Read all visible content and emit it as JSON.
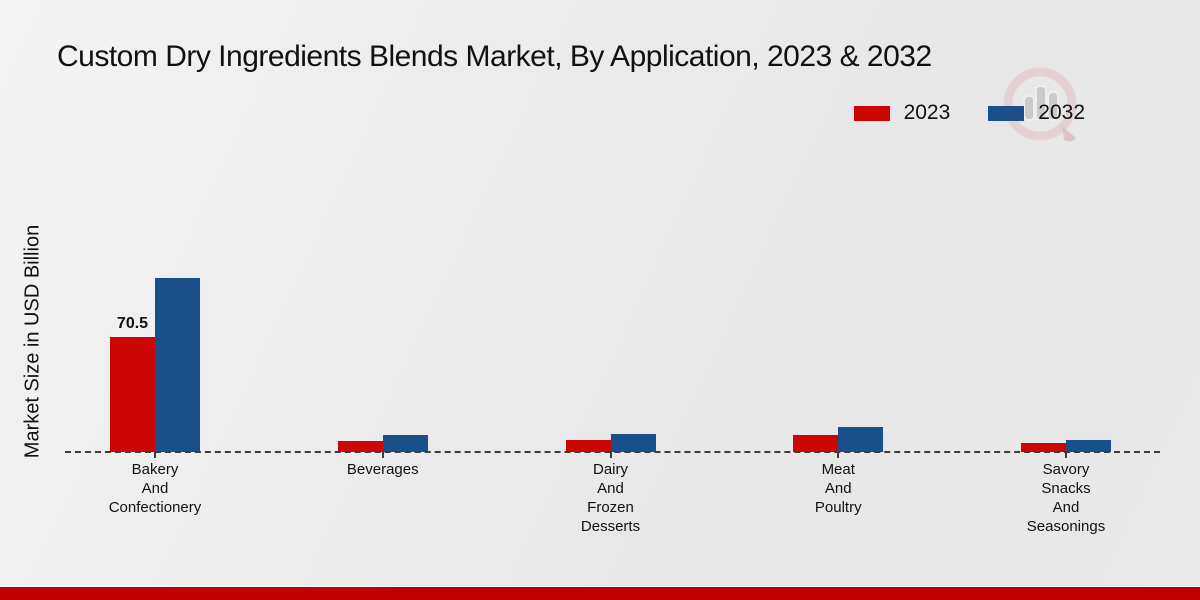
{
  "title": "Custom Dry Ingredients Blends Market, By Application, 2023 & 2032",
  "legend": {
    "items": [
      {
        "label": "2023",
        "color": "#cc0505"
      },
      {
        "label": "2032",
        "color": "#1b4f8a"
      }
    ]
  },
  "colors": {
    "series_2023": "#cc0505",
    "series_2032": "#1b4f8a",
    "baseline": "#3c3c3c",
    "footer_bar": "#c00000",
    "background": "#ececec"
  },
  "watermark_icon": "magnifier-bar-chart-logo",
  "chart_data": {
    "type": "bar",
    "title": "Custom Dry Ingredients Blends Market, By Application, 2023 & 2032",
    "xlabel": "",
    "ylabel": "Market Size in USD Billion",
    "units": "USD Billion",
    "categories": [
      [
        "Bakery",
        "And",
        "Confectionery"
      ],
      [
        "Beverages"
      ],
      [
        "Dairy",
        "And",
        "Frozen",
        "Desserts"
      ],
      [
        "Meat",
        "And",
        "Poultry"
      ],
      [
        "Savory",
        "Snacks",
        "And",
        "Seasonings"
      ]
    ],
    "series": [
      {
        "name": "2023",
        "color": "#cc0505",
        "values": [
          70.5,
          6.8,
          7.4,
          10.4,
          5.5
        ],
        "value_labels": [
          "70.5",
          "",
          "",
          "",
          ""
        ]
      },
      {
        "name": "2032",
        "color": "#1b4f8a",
        "values": [
          106.6,
          10.5,
          11.0,
          15.3,
          7.4
        ],
        "value_labels": [
          "",
          "",
          "",
          "",
          ""
        ]
      }
    ],
    "ylim": [
      0,
      115
    ],
    "grid": false,
    "axis_line_style": "dashed",
    "legend_position": "top-right"
  }
}
